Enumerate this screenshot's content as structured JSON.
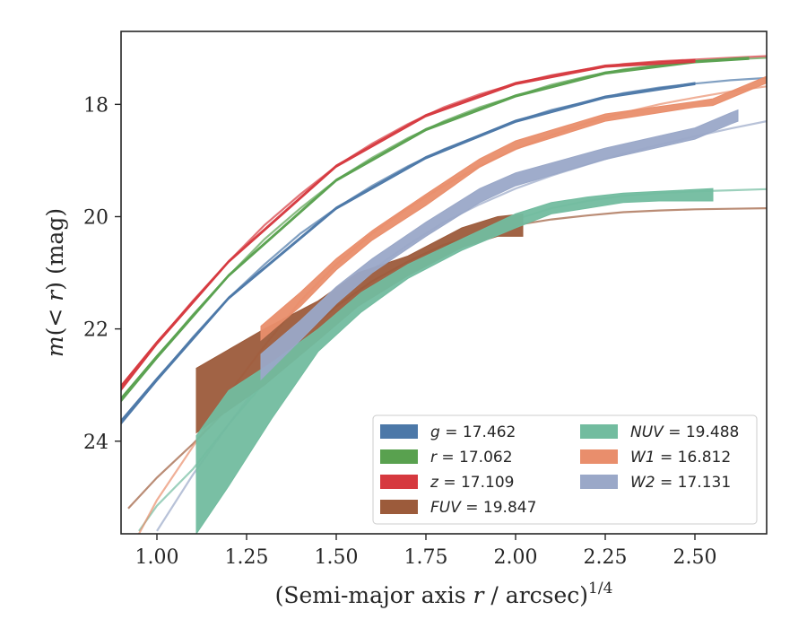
{
  "chart_data": {
    "type": "line",
    "xlabel": "(Semi-major axis r / arcsec)",
    "xlabel_parts": {
      "pre": "(Semi-major axis ",
      "var": "r",
      "post": " / arcsec)",
      "sup": "1/4"
    },
    "ylabel": "m(< r) (mag)",
    "ylabel_parts": {
      "pre": "m(< ",
      "var": "r",
      "post": ") (mag)"
    },
    "xlim": [
      0.9,
      2.7
    ],
    "ylim": [
      25.65,
      16.7
    ],
    "y_inverted": true,
    "grid": false,
    "legend_placement": "lower-right",
    "xticks": [
      "1.00",
      "1.25",
      "1.50",
      "1.75",
      "2.00",
      "2.25",
      "2.50"
    ],
    "xtick_values": [
      1.0,
      1.25,
      1.5,
      1.75,
      2.0,
      2.25,
      2.5
    ],
    "yticks": [
      "18",
      "20",
      "22",
      "24"
    ],
    "ytick_values": [
      18,
      20,
      22,
      24
    ],
    "series": [
      {
        "name": "g = 17.462",
        "label_var": "g",
        "label_val": "17.462",
        "color": "#4c78a8",
        "model": [
          [
            0.9,
            23.65
          ],
          [
            1.0,
            22.9
          ],
          [
            1.1,
            22.15
          ],
          [
            1.2,
            21.45
          ],
          [
            1.3,
            20.85
          ],
          [
            1.4,
            20.3
          ],
          [
            1.5,
            19.85
          ],
          [
            1.6,
            19.45
          ],
          [
            1.7,
            19.1
          ],
          [
            1.8,
            18.8
          ],
          [
            1.9,
            18.55
          ],
          [
            2.0,
            18.3
          ],
          [
            2.1,
            18.1
          ],
          [
            2.2,
            17.95
          ],
          [
            2.3,
            17.8
          ],
          [
            2.4,
            17.7
          ],
          [
            2.5,
            17.63
          ],
          [
            2.6,
            17.57
          ],
          [
            2.7,
            17.53
          ]
        ],
        "band": [
          [
            0.9,
            23.7,
            23.62
          ],
          [
            1.0,
            22.93,
            22.87
          ],
          [
            1.2,
            21.47,
            21.43
          ],
          [
            1.5,
            19.87,
            19.83
          ],
          [
            1.75,
            18.97,
            18.93
          ],
          [
            2.0,
            18.32,
            18.28
          ],
          [
            2.25,
            17.89,
            17.85
          ],
          [
            2.5,
            17.65,
            17.61
          ]
        ]
      },
      {
        "name": "r = 17.062",
        "label_var": "r",
        "label_val": "17.062",
        "color": "#59a14f",
        "model": [
          [
            0.9,
            23.25
          ],
          [
            1.0,
            22.5
          ],
          [
            1.1,
            21.75
          ],
          [
            1.2,
            21.05
          ],
          [
            1.3,
            20.4
          ],
          [
            1.4,
            19.85
          ],
          [
            1.5,
            19.35
          ],
          [
            1.6,
            18.95
          ],
          [
            1.7,
            18.6
          ],
          [
            1.8,
            18.3
          ],
          [
            1.9,
            18.05
          ],
          [
            2.0,
            17.85
          ],
          [
            2.1,
            17.65
          ],
          [
            2.2,
            17.5
          ],
          [
            2.3,
            17.38
          ],
          [
            2.4,
            17.3
          ],
          [
            2.5,
            17.24
          ],
          [
            2.6,
            17.2
          ],
          [
            2.7,
            17.17
          ]
        ],
        "band": [
          [
            0.9,
            23.3,
            23.22
          ],
          [
            1.0,
            22.53,
            22.47
          ],
          [
            1.2,
            21.07,
            21.03
          ],
          [
            1.5,
            19.37,
            19.33
          ],
          [
            1.75,
            18.47,
            18.43
          ],
          [
            2.0,
            17.87,
            17.83
          ],
          [
            2.25,
            17.46,
            17.42
          ],
          [
            2.5,
            17.26,
            17.22
          ],
          [
            2.65,
            17.2,
            17.16
          ]
        ]
      },
      {
        "name": "z = 17.109",
        "label_var": "z",
        "label_val": "17.109",
        "color": "#d6393f",
        "model": [
          [
            0.9,
            23.05
          ],
          [
            1.0,
            22.25
          ],
          [
            1.1,
            21.5
          ],
          [
            1.2,
            20.8
          ],
          [
            1.3,
            20.15
          ],
          [
            1.4,
            19.6
          ],
          [
            1.5,
            19.1
          ],
          [
            1.6,
            18.7
          ],
          [
            1.7,
            18.35
          ],
          [
            1.8,
            18.05
          ],
          [
            1.9,
            17.82
          ],
          [
            2.0,
            17.63
          ],
          [
            2.1,
            17.48
          ],
          [
            2.2,
            17.37
          ],
          [
            2.3,
            17.28
          ],
          [
            2.4,
            17.23
          ],
          [
            2.5,
            17.2
          ],
          [
            2.6,
            17.17
          ],
          [
            2.7,
            17.14
          ]
        ],
        "band": [
          [
            0.9,
            23.1,
            23.0
          ],
          [
            1.0,
            22.28,
            22.22
          ],
          [
            1.2,
            20.82,
            20.78
          ],
          [
            1.5,
            19.12,
            19.08
          ],
          [
            1.75,
            18.22,
            18.18
          ],
          [
            2.0,
            17.65,
            17.61
          ],
          [
            2.25,
            17.34,
            17.3
          ],
          [
            2.5,
            17.25,
            17.2
          ]
        ]
      },
      {
        "name": "FUV = 19.847",
        "label_var": "FUV",
        "label_val": "19.847",
        "color": "#9c5b3b",
        "model": [
          [
            0.92,
            25.2
          ],
          [
            1.0,
            24.65
          ],
          [
            1.1,
            24.05
          ],
          [
            1.2,
            23.4
          ],
          [
            1.3,
            22.75
          ],
          [
            1.4,
            22.15
          ],
          [
            1.5,
            21.6
          ],
          [
            1.6,
            21.15
          ],
          [
            1.7,
            20.8
          ],
          [
            1.8,
            20.5
          ],
          [
            1.9,
            20.3
          ],
          [
            2.0,
            20.15
          ],
          [
            2.1,
            20.05
          ],
          [
            2.2,
            19.98
          ],
          [
            2.3,
            19.92
          ],
          [
            2.4,
            19.89
          ],
          [
            2.5,
            19.87
          ],
          [
            2.6,
            19.86
          ],
          [
            2.7,
            19.85
          ]
        ],
        "band": [
          [
            1.11,
            23.85,
            22.7
          ],
          [
            1.3,
            23.0,
            22.0
          ],
          [
            1.45,
            22.2,
            21.5
          ],
          [
            1.56,
            21.6,
            21.0
          ],
          [
            1.7,
            21.05,
            20.7
          ],
          [
            1.85,
            20.55,
            20.2
          ],
          [
            1.95,
            20.35,
            20.0
          ],
          [
            2.02,
            20.35,
            19.95
          ]
        ]
      },
      {
        "name": "NUV = 19.488",
        "label_var": "NUV",
        "label_val": "19.488",
        "color": "#72bc9f",
        "model": [
          [
            0.95,
            25.6
          ],
          [
            1.0,
            25.15
          ],
          [
            1.1,
            24.5
          ],
          [
            1.2,
            23.7
          ],
          [
            1.3,
            22.95
          ],
          [
            1.4,
            22.3
          ],
          [
            1.5,
            21.75
          ],
          [
            1.6,
            21.3
          ],
          [
            1.7,
            20.9
          ],
          [
            1.8,
            20.55
          ],
          [
            1.9,
            20.28
          ],
          [
            2.0,
            20.05
          ],
          [
            2.1,
            19.85
          ],
          [
            2.2,
            19.72
          ],
          [
            2.3,
            19.63
          ],
          [
            2.4,
            19.58
          ],
          [
            2.5,
            19.55
          ],
          [
            2.6,
            19.53
          ],
          [
            2.7,
            19.51
          ]
        ],
        "band": [
          [
            1.11,
            25.65,
            23.9
          ],
          [
            1.2,
            24.8,
            23.1
          ],
          [
            1.32,
            23.6,
            22.6
          ],
          [
            1.45,
            22.4,
            22.0
          ],
          [
            1.57,
            21.7,
            21.35
          ],
          [
            1.7,
            21.1,
            20.85
          ],
          [
            1.85,
            20.6,
            20.4
          ],
          [
            2.0,
            20.2,
            19.95
          ],
          [
            2.1,
            19.95,
            19.75
          ],
          [
            2.2,
            19.85,
            19.65
          ],
          [
            2.3,
            19.75,
            19.58
          ],
          [
            2.4,
            19.72,
            19.55
          ],
          [
            2.55,
            19.72,
            19.5
          ]
        ]
      },
      {
        "name": "W1 = 16.812",
        "label_var": "W1",
        "label_val": "16.812",
        "color": "#e98e6c",
        "model": [
          [
            0.95,
            25.65
          ],
          [
            1.0,
            25.05
          ],
          [
            1.1,
            24.1
          ],
          [
            1.2,
            23.15
          ],
          [
            1.3,
            22.3
          ],
          [
            1.4,
            21.5
          ],
          [
            1.5,
            20.85
          ],
          [
            1.6,
            20.3
          ],
          [
            1.7,
            19.85
          ],
          [
            1.8,
            19.45
          ],
          [
            1.9,
            19.1
          ],
          [
            2.0,
            18.8
          ],
          [
            2.1,
            18.55
          ],
          [
            2.2,
            18.33
          ],
          [
            2.3,
            18.15
          ],
          [
            2.4,
            18.0
          ],
          [
            2.5,
            17.88
          ],
          [
            2.6,
            17.77
          ],
          [
            2.7,
            17.68
          ]
        ],
        "band": [
          [
            1.29,
            22.2,
            21.95
          ],
          [
            1.4,
            21.6,
            21.35
          ],
          [
            1.5,
            20.95,
            20.75
          ],
          [
            1.6,
            20.42,
            20.25
          ],
          [
            1.75,
            19.8,
            19.6
          ],
          [
            1.9,
            19.12,
            18.97
          ],
          [
            2.0,
            18.8,
            18.65
          ],
          [
            2.25,
            18.3,
            18.17
          ],
          [
            2.5,
            18.05,
            17.95
          ],
          [
            2.55,
            18.02,
            17.9
          ],
          [
            2.7,
            17.62,
            17.5
          ]
        ]
      },
      {
        "name": "W2 = 17.131",
        "label_var": "W2",
        "label_val": "17.131",
        "color": "#9aa8c8",
        "model": [
          [
            1.0,
            25.6
          ],
          [
            1.1,
            24.6
          ],
          [
            1.2,
            23.7
          ],
          [
            1.3,
            22.85
          ],
          [
            1.4,
            22.1
          ],
          [
            1.5,
            21.45
          ],
          [
            1.6,
            20.95
          ],
          [
            1.7,
            20.5
          ],
          [
            1.8,
            20.1
          ],
          [
            1.9,
            19.78
          ],
          [
            2.0,
            19.5
          ],
          [
            2.1,
            19.27
          ],
          [
            2.2,
            19.07
          ],
          [
            2.3,
            18.88
          ],
          [
            2.4,
            18.72
          ],
          [
            2.5,
            18.57
          ],
          [
            2.6,
            18.43
          ],
          [
            2.7,
            18.3
          ]
        ],
        "band": [
          [
            1.29,
            22.9,
            22.45
          ],
          [
            1.4,
            22.2,
            21.85
          ],
          [
            1.5,
            21.55,
            21.25
          ],
          [
            1.6,
            21.0,
            20.75
          ],
          [
            1.75,
            20.35,
            20.1
          ],
          [
            1.9,
            19.75,
            19.5
          ],
          [
            2.0,
            19.45,
            19.22
          ],
          [
            2.25,
            18.98,
            18.78
          ],
          [
            2.5,
            18.62,
            18.42
          ],
          [
            2.6,
            18.35,
            18.15
          ],
          [
            2.62,
            18.3,
            18.1
          ]
        ]
      }
    ]
  }
}
